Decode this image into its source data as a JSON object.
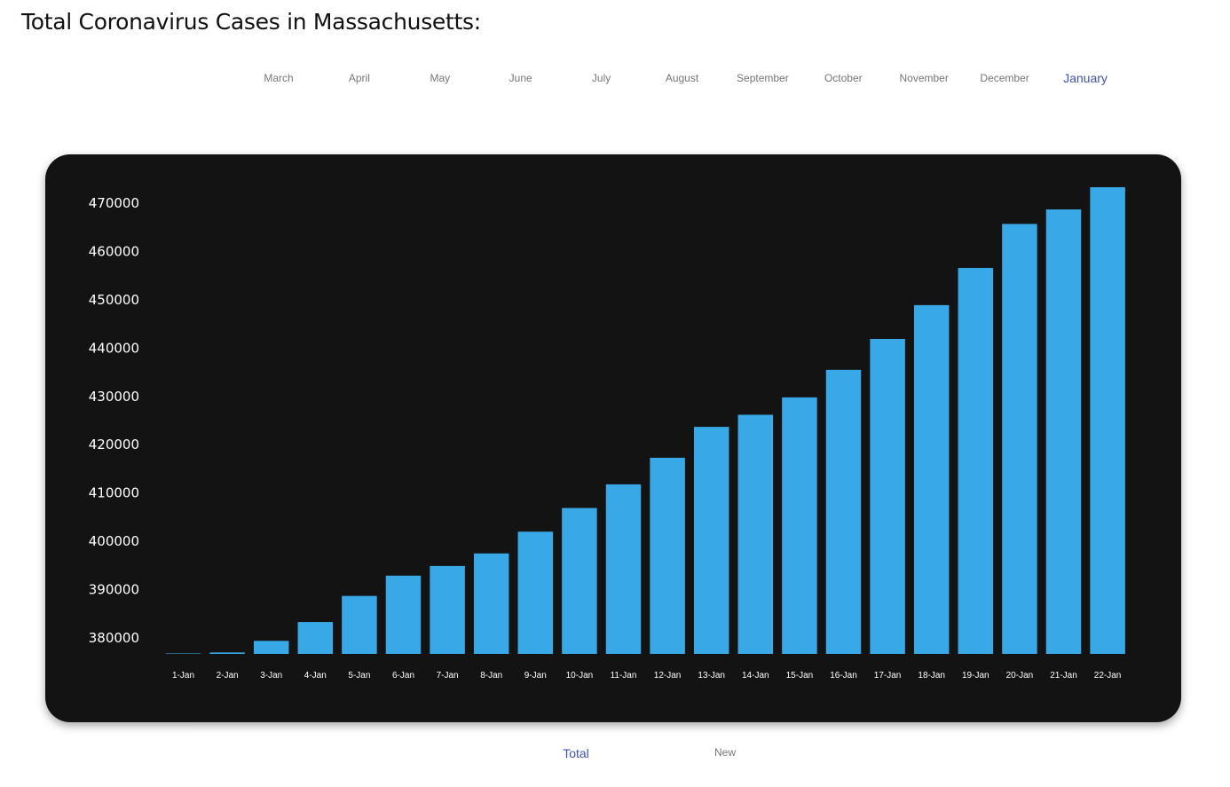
{
  "page": {
    "title": "Total Coronavirus Cases in Massachusetts:"
  },
  "months": {
    "items": [
      "March",
      "April",
      "May",
      "June",
      "July",
      "August",
      "September",
      "October",
      "November",
      "December",
      "January"
    ],
    "selected": "January"
  },
  "view_tabs": {
    "total": "Total",
    "new": "New",
    "selected": "Total"
  },
  "colors": {
    "bar": "#38a9e6",
    "card_background": "#131313",
    "active_tab": "#3f51b5"
  },
  "chart_data": {
    "type": "bar",
    "title": "",
    "xlabel": "",
    "ylabel": "",
    "categories": [
      "1-Jan",
      "2-Jan",
      "3-Jan",
      "4-Jan",
      "5-Jan",
      "6-Jan",
      "7-Jan",
      "8-Jan",
      "9-Jan",
      "10-Jan",
      "11-Jan",
      "12-Jan",
      "13-Jan",
      "14-Jan",
      "15-Jan",
      "16-Jan",
      "17-Jan",
      "18-Jan",
      "19-Jan",
      "20-Jan",
      "21-Jan",
      "22-Jan"
    ],
    "values": [
      376800,
      377000,
      379400,
      383300,
      388700,
      392900,
      394900,
      397500,
      402000,
      406900,
      411800,
      417300,
      423700,
      426200,
      429800,
      435500,
      441900,
      448900,
      456600,
      465700,
      468700,
      473300
    ],
    "ylim": [
      376700,
      476000
    ],
    "yticks": [
      380000,
      390000,
      400000,
      410000,
      420000,
      430000,
      440000,
      450000,
      460000,
      470000
    ],
    "grid": false,
    "legend": "none"
  }
}
